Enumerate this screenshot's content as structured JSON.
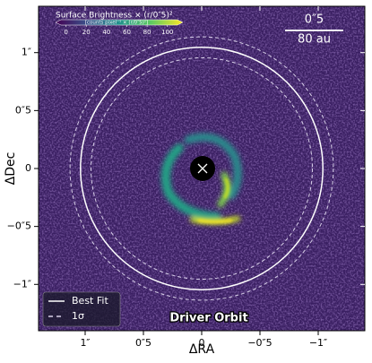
{
  "chart_data": {
    "type": "image",
    "xlabel": "ΔRA",
    "ylabel": "ΔDec",
    "xlim": [
      1.4,
      -1.4
    ],
    "ylim": [
      -1.4,
      1.4
    ],
    "xticks": [
      {
        "value": 1,
        "label": "1″"
      },
      {
        "value": 0.5,
        "label": "0″5"
      },
      0,
      {
        "value": -0.5,
        "label": "−0″5"
      },
      {
        "value": -1,
        "label": "−1″"
      }
    ],
    "yticks": [
      {
        "value": 1,
        "label": "1″"
      },
      {
        "value": 0.5,
        "label": "0″5"
      },
      0,
      {
        "value": -0.5,
        "label": "−0″5"
      },
      {
        "value": -1,
        "label": "−1″"
      }
    ],
    "colorbar": {
      "title": "Surface Brightness × (r/0″5)²",
      "unit": "[counts pixel⁻¹ × (r/0″5)²]",
      "lim": [
        -5,
        110
      ],
      "ticks": [
        0,
        20,
        40,
        60,
        80,
        100
      ],
      "colormap": "viridis"
    },
    "scalebar": {
      "length": 0.5,
      "label": "0″5",
      "physical": "80 au",
      "color": "#ffffff"
    },
    "series": [
      {
        "name": "Best Fit",
        "color": "#ffffff",
        "radius": 1.04
      },
      {
        "name": "1σ",
        "color": "#d8d0e8",
        "radii": [
          0.95,
          1.13
        ]
      }
    ],
    "annotation": "Driver Orbit",
    "legend": "lower left"
  }
}
